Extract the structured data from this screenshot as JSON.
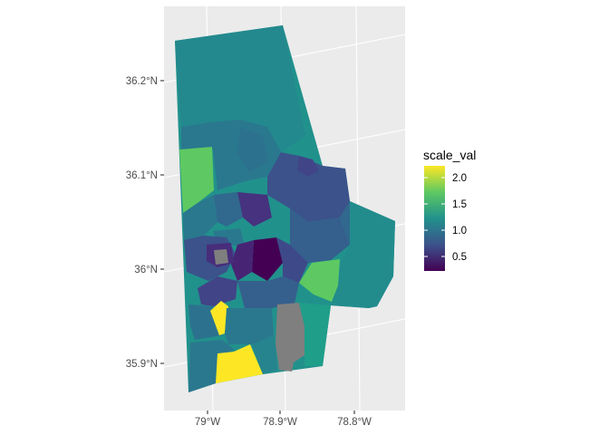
{
  "map": {
    "y_ticks": [
      "36.2°N",
      "36.1°N",
      "36°N",
      "35.9°N"
    ],
    "x_ticks": [
      "79°W",
      "78.9°W",
      "78.8°W"
    ],
    "panel_background": "#ebebeb",
    "grid_color": "#ffffff",
    "missing_color": "#7f7f7f"
  },
  "legend": {
    "title": "scale_val",
    "labels": [
      "2.0",
      "1.5",
      "1.0",
      "0.5"
    ],
    "colors": [
      "#440154",
      "#3b528b",
      "#21918c",
      "#5ec962",
      "#fde725"
    ]
  }
}
